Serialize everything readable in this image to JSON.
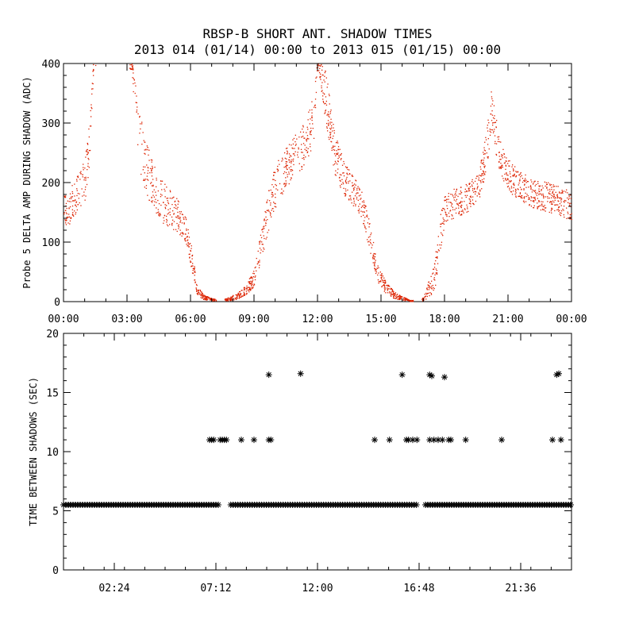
{
  "title": [
    "RBSP-B SHORT ANT. SHADOW TIMES",
    "2013 014 (01/14) 00:00 to 2013 015 (01/15) 00:00"
  ],
  "colors": {
    "top_points": "#dd2200",
    "bottom_points": "#000000",
    "axes": "#000000",
    "background": "#ffffff"
  },
  "chart_data": [
    {
      "type": "scatter",
      "ylabel": "Probe 5 DELTA AMP DURING SHADOW (ADC)",
      "xlabel": "",
      "xlim": [
        "00:00",
        "24:00"
      ],
      "ylim": [
        0,
        400
      ],
      "x_tick_labels": [
        "00:00",
        "03:00",
        "06:00",
        "09:00",
        "12:00",
        "15:00",
        "18:00",
        "21:00",
        "00:00"
      ],
      "y_tick_labels": [
        "0",
        "100",
        "200",
        "300",
        "400"
      ],
      "grid": false,
      "series": [
        {
          "marker": "dot",
          "x_hours": [
            0.0,
            0.25,
            0.5,
            0.75,
            1.0,
            1.2,
            1.4,
            3.2,
            3.5,
            3.8,
            4.2,
            4.6,
            5.0,
            5.4,
            5.8,
            6.0,
            6.3,
            6.6,
            7.0,
            7.4,
            7.8,
            8.2,
            8.6,
            9.0,
            9.4,
            9.8,
            10.2,
            10.6,
            11.0,
            11.4,
            11.8,
            12.0,
            12.4,
            12.8,
            13.2,
            13.6,
            14.0,
            14.4,
            14.8,
            15.2,
            15.6,
            16.0,
            16.4,
            17.0,
            17.5,
            17.8,
            18.0,
            18.4,
            18.8,
            19.2,
            19.6,
            20.0,
            20.2,
            20.5,
            20.8,
            21.2,
            21.6,
            22.0,
            22.5,
            23.0,
            23.5,
            24.0
          ],
          "y": [
            150,
            160,
            175,
            190,
            205,
            260,
            400,
            400,
            290,
            230,
            200,
            170,
            155,
            145,
            120,
            80,
            20,
            8,
            4,
            2,
            5,
            10,
            20,
            40,
            110,
            175,
            210,
            230,
            250,
            265,
            310,
            400,
            340,
            250,
            210,
            190,
            170,
            120,
            50,
            25,
            12,
            6,
            2,
            5,
            40,
            120,
            155,
            165,
            170,
            178,
            190,
            260,
            330,
            260,
            225,
            205,
            195,
            185,
            180,
            175,
            170,
            160
          ],
          "spread": [
            30,
            30,
            30,
            30,
            35,
            40,
            10,
            10,
            55,
            45,
            40,
            35,
            35,
            30,
            25,
            20,
            8,
            4,
            2,
            1,
            3,
            5,
            8,
            15,
            30,
            35,
            35,
            35,
            35,
            40,
            40,
            10,
            45,
            35,
            30,
            25,
            25,
            25,
            15,
            10,
            6,
            3,
            1,
            3,
            25,
            30,
            25,
            25,
            25,
            25,
            25,
            35,
            35,
            30,
            25,
            25,
            25,
            25,
            25,
            25,
            25,
            25
          ]
        }
      ]
    },
    {
      "type": "scatter",
      "ylabel": "TIME BETWEEN SHADOWS (SEC)",
      "xlabel": "",
      "xlim": [
        "00:00",
        "24:00"
      ],
      "ylim": [
        0,
        20
      ],
      "x_tick_labels": [
        "02:24",
        "07:12",
        "12:00",
        "16:48",
        "21:36"
      ],
      "y_tick_labels": [
        "0",
        "5",
        "10",
        "15",
        "20"
      ],
      "grid": false,
      "series": [
        {
          "marker": "asterisk",
          "baseline_y": 5.5,
          "baseline_ranges_hours": [
            [
              0.0,
              7.4
            ],
            [
              7.9,
              16.7
            ],
            [
              17.1,
              24.0
            ]
          ],
          "points_hours": [
            [
              6.9,
              11.0
            ],
            [
              7.0,
              11.0
            ],
            [
              7.1,
              11.0
            ],
            [
              7.4,
              11.0
            ],
            [
              7.5,
              11.0
            ],
            [
              7.6,
              11.0
            ],
            [
              7.7,
              11.0
            ],
            [
              8.4,
              11.0
            ],
            [
              9.0,
              11.0
            ],
            [
              9.7,
              11.0
            ],
            [
              9.8,
              11.0
            ],
            [
              9.7,
              16.5
            ],
            [
              11.2,
              16.6
            ],
            [
              14.7,
              11.0
            ],
            [
              15.4,
              11.0
            ],
            [
              16.0,
              16.5
            ],
            [
              16.2,
              11.0
            ],
            [
              16.3,
              11.0
            ],
            [
              16.5,
              11.0
            ],
            [
              16.7,
              11.0
            ],
            [
              17.3,
              16.5
            ],
            [
              17.4,
              16.4
            ],
            [
              17.3,
              11.0
            ],
            [
              17.5,
              11.0
            ],
            [
              17.7,
              11.0
            ],
            [
              17.9,
              11.0
            ],
            [
              18.0,
              16.3
            ],
            [
              18.2,
              11.0
            ],
            [
              18.3,
              11.0
            ],
            [
              19.0,
              11.0
            ],
            [
              20.7,
              11.0
            ],
            [
              23.1,
              11.0
            ],
            [
              23.3,
              16.5
            ],
            [
              23.4,
              16.6
            ],
            [
              23.5,
              11.0
            ]
          ]
        }
      ]
    }
  ]
}
